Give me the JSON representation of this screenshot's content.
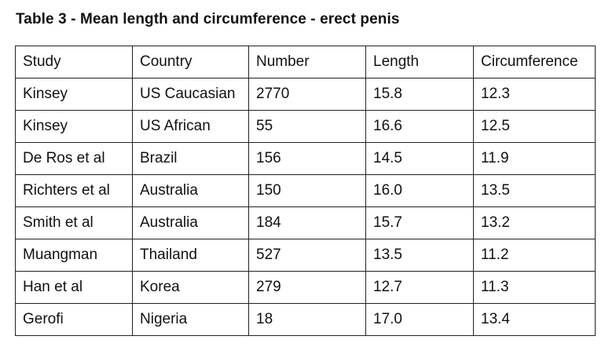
{
  "document": {
    "title": "Table 3 - Mean length and circumference - erect penis"
  },
  "table": {
    "headers": [
      "Study",
      "Country",
      "Number",
      "Length",
      "Circumference"
    ],
    "rows": [
      [
        "Kinsey",
        "US Caucasian",
        "2770",
        "15.8",
        "12.3"
      ],
      [
        "Kinsey",
        "US African",
        "55",
        "16.6",
        "12.5"
      ],
      [
        "De Ros et al",
        "Brazil",
        "156",
        "14.5",
        "11.9"
      ],
      [
        "Richters et al",
        "Australia",
        "150",
        "16.0",
        "13.5"
      ],
      [
        "Smith et al",
        "Australia",
        "184",
        "15.7",
        "13.2"
      ],
      [
        "Muangman",
        "Thailand",
        "527",
        "13.5",
        "11.2"
      ],
      [
        "Han et al",
        "Korea",
        "279",
        "12.7",
        "11.3"
      ],
      [
        "Gerofi",
        "Nigeria",
        "18",
        "17.0",
        "13.4"
      ]
    ]
  }
}
